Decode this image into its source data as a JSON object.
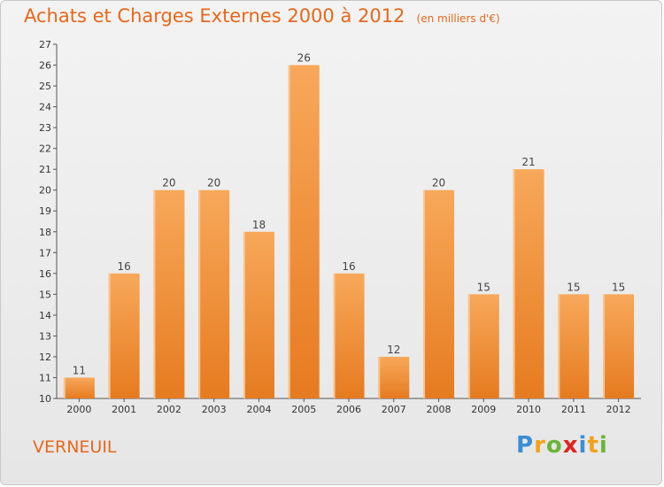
{
  "header": {
    "title": "Achats et Charges Externes 2000 à 2012",
    "subtitle": "(en milliers d'€)"
  },
  "footer": {
    "place": "VERNEUIL",
    "logo": {
      "letters": [
        "P",
        "r",
        "o",
        "x",
        "i",
        "t",
        "i"
      ],
      "colors": [
        "#3a8dd6",
        "#f4a11a",
        "#6bb536",
        "#e2231a",
        "#3a8dd6",
        "#f4a11a",
        "#6bb536"
      ]
    }
  },
  "chart_data": {
    "type": "bar",
    "title": "Achats et Charges Externes 2000 à 2012",
    "subtitle": "(en milliers d'€)",
    "categories": [
      "2000",
      "2001",
      "2002",
      "2003",
      "2004",
      "2005",
      "2006",
      "2007",
      "2008",
      "2009",
      "2010",
      "2011",
      "2012"
    ],
    "values": [
      11,
      16,
      20,
      20,
      18,
      26,
      16,
      12,
      20,
      15,
      21,
      15,
      15
    ],
    "ylim": [
      10,
      27
    ],
    "yticks": [
      10,
      11,
      12,
      13,
      14,
      15,
      16,
      17,
      18,
      19,
      20,
      21,
      22,
      23,
      24,
      25,
      26,
      27
    ],
    "grid": false,
    "bar_color": "#f0882e",
    "bar_highlight": "#f7a95a"
  }
}
